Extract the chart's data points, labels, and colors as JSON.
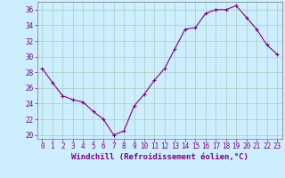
{
  "x": [
    0,
    1,
    2,
    3,
    4,
    5,
    6,
    7,
    8,
    9,
    10,
    11,
    12,
    13,
    14,
    15,
    16,
    17,
    18,
    19,
    20,
    21,
    22,
    23
  ],
  "y": [
    28.5,
    26.7,
    25.0,
    24.5,
    24.2,
    23.0,
    22.0,
    20.0,
    20.5,
    23.7,
    25.2,
    27.0,
    28.5,
    31.0,
    33.5,
    33.7,
    35.5,
    36.0,
    36.0,
    36.5,
    35.0,
    33.5,
    31.5,
    30.3
  ],
  "line_color": "#800080",
  "marker": "+",
  "marker_size": 3,
  "bg_color": "#cceeff",
  "grid_color": "#aaccbb",
  "ylabel_ticks": [
    20,
    22,
    24,
    26,
    28,
    30,
    32,
    34,
    36
  ],
  "xlabel": "Windchill (Refroidissement éolien,°C)",
  "xlim": [
    -0.5,
    23.5
  ],
  "ylim": [
    19.5,
    37.0
  ],
  "tick_label_color": "#800080",
  "tick_fontsize": 5.5,
  "xlabel_fontsize": 6.5,
  "spine_color": "#888888"
}
